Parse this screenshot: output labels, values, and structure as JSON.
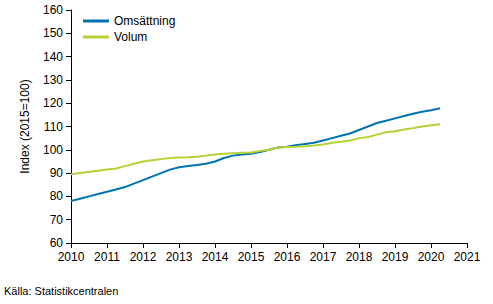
{
  "chart_data": {
    "type": "line",
    "y_label": "Index (2015=100)",
    "source": "Källa: Statistikcentralen",
    "x": [
      2010,
      2010.25,
      2010.5,
      2010.75,
      2011,
      2011.25,
      2011.5,
      2011.75,
      2012,
      2012.25,
      2012.5,
      2012.75,
      2013,
      2013.25,
      2013.5,
      2013.75,
      2014,
      2014.25,
      2014.5,
      2014.75,
      2015,
      2015.25,
      2015.5,
      2015.75,
      2016,
      2016.25,
      2016.5,
      2016.75,
      2017,
      2017.25,
      2017.5,
      2017.75,
      2018,
      2018.25,
      2018.5,
      2018.75,
      2019,
      2019.25,
      2019.5,
      2019.75,
      2020,
      2020.25
    ],
    "series": [
      {
        "name": "Omsättning",
        "color": "#0073b0",
        "values": [
          78,
          79,
          80,
          81,
          82,
          83,
          84,
          85.5,
          87,
          88.5,
          90,
          91.5,
          92.5,
          93,
          93.5,
          94,
          95,
          96.5,
          97.5,
          98,
          98.3,
          99,
          100,
          101,
          101.3,
          102,
          102.5,
          103,
          104,
          105,
          106,
          107,
          108.5,
          110,
          111.5,
          112.5,
          113.5,
          114.5,
          115.5,
          116.3,
          117,
          117.8
        ]
      },
      {
        "name": "Volum",
        "color": "#b4d334",
        "values": [
          89.5,
          90,
          90.5,
          91,
          91.5,
          92,
          93,
          94,
          95,
          95.5,
          96,
          96.5,
          96.7,
          96.8,
          97,
          97.5,
          98,
          98.3,
          98.5,
          98.7,
          98.8,
          99.5,
          100,
          101,
          101.2,
          101.3,
          101.5,
          101.8,
          102.3,
          103,
          103.5,
          104,
          105,
          105.5,
          106.5,
          107.5,
          108,
          108.7,
          109.3,
          110,
          110.5,
          111
        ]
      }
    ],
    "xlim": [
      2010,
      2021
    ],
    "xticks": [
      2010,
      2011,
      2012,
      2013,
      2014,
      2015,
      2016,
      2017,
      2018,
      2019,
      2020,
      2021
    ],
    "ylim": [
      60,
      160
    ],
    "yticks": [
      60,
      70,
      80,
      90,
      100,
      110,
      120,
      130,
      140,
      150,
      160
    ],
    "grid": false,
    "legend": "upper left"
  }
}
